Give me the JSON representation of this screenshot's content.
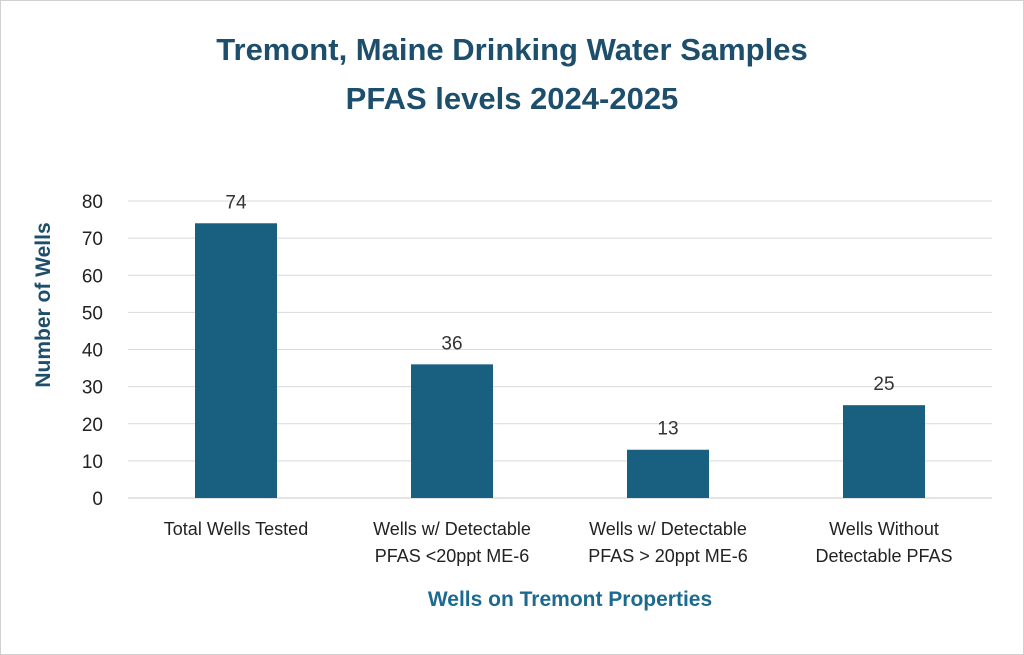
{
  "chart_data": {
    "type": "bar",
    "title_lines": [
      "Tremont, Maine Drinking Water Samples",
      "PFAS levels 2024-2025"
    ],
    "xlabel": "Wells on Tremont Properties",
    "ylabel": "Number of Wells",
    "categories": [
      [
        "Total Wells Tested"
      ],
      [
        "Wells w/ Detectable",
        "PFAS <20ppt ME-6"
      ],
      [
        "Wells w/ Detectable",
        "PFAS > 20ppt ME-6"
      ],
      [
        "Wells Without",
        "Detectable PFAS"
      ]
    ],
    "values": [
      74,
      36,
      13,
      25
    ],
    "ylim": [
      0,
      80
    ],
    "yticks": [
      0,
      10,
      20,
      30,
      40,
      50,
      60,
      70,
      80
    ],
    "grid": true,
    "bar_color": "#195f80",
    "data_labels": true
  }
}
